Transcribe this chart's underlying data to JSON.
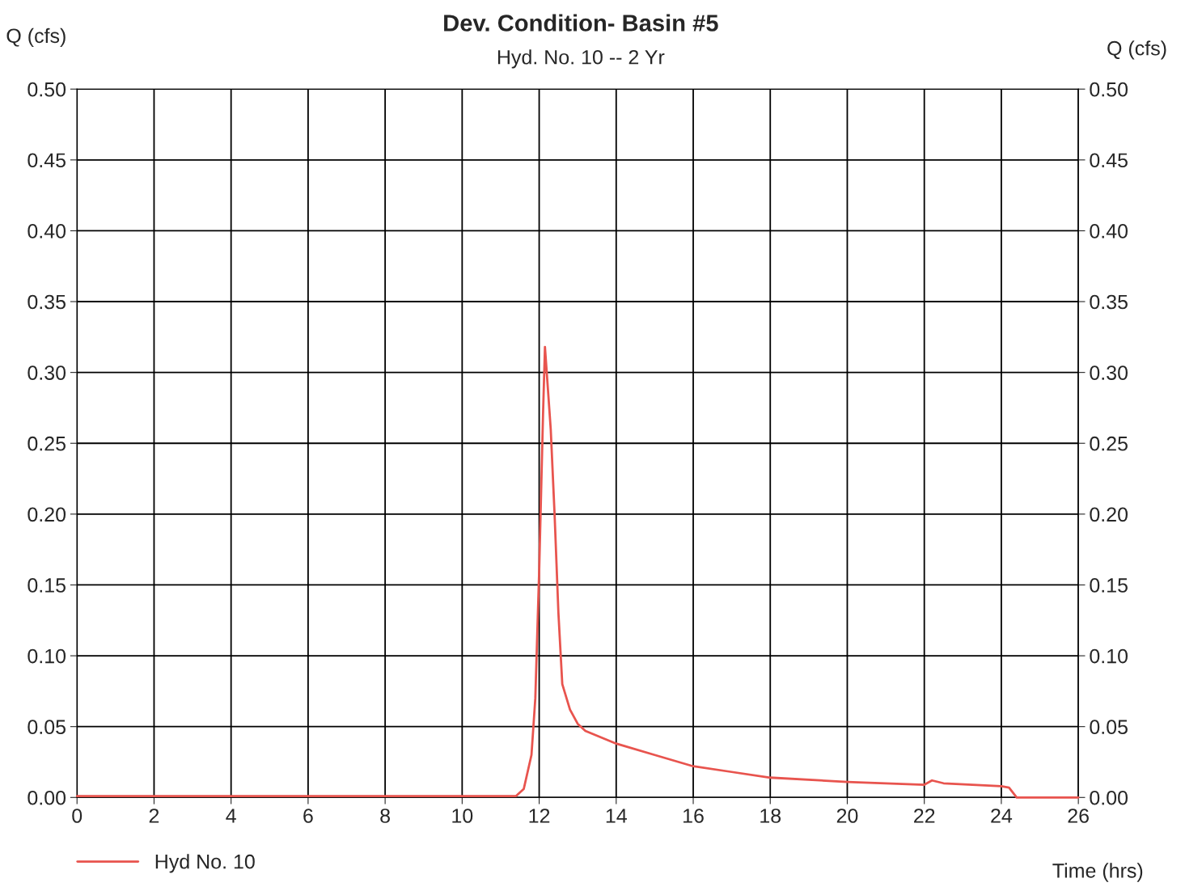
{
  "chart_data": {
    "type": "line",
    "title": "Dev. Condition- Basin #5",
    "subtitle": "Hyd. No. 10 -- 2 Yr",
    "xlabel": "Time (hrs)",
    "ylabel": "Q (cfs)",
    "y2label": "Q (cfs)",
    "x": [
      0,
      4,
      8,
      11.4,
      11.6,
      11.8,
      11.9,
      12.0,
      12.1,
      12.15,
      12.3,
      12.4,
      12.5,
      12.6,
      12.8,
      13.0,
      13.2,
      14,
      15,
      16,
      17,
      18,
      20,
      22,
      22.2,
      22.5,
      24,
      24.2,
      24.4,
      26
    ],
    "series": [
      {
        "name": "Hyd No. 10",
        "color": "#e8544e",
        "values": [
          0.001,
          0.001,
          0.001,
          0.001,
          0.006,
          0.03,
          0.07,
          0.16,
          0.27,
          0.318,
          0.26,
          0.2,
          0.13,
          0.08,
          0.062,
          0.052,
          0.047,
          0.038,
          0.03,
          0.022,
          0.018,
          0.014,
          0.011,
          0.009,
          0.012,
          0.01,
          0.008,
          0.007,
          0.0,
          0.0
        ]
      }
    ],
    "xlim": [
      0,
      26
    ],
    "xticks": [
      0,
      2,
      4,
      6,
      8,
      10,
      12,
      14,
      16,
      18,
      20,
      22,
      24,
      26
    ],
    "ylim": [
      0,
      0.5
    ],
    "yticks": [
      {
        "value": 0,
        "label": "0.00"
      },
      {
        "value": 0.05,
        "label": "0.05"
      },
      {
        "value": 0.1,
        "label": "0.10"
      },
      {
        "value": 0.15,
        "label": "0.15"
      },
      {
        "value": 0.2,
        "label": "0.20"
      },
      {
        "value": 0.25,
        "label": "0.25"
      },
      {
        "value": 0.3,
        "label": "0.30"
      },
      {
        "value": 0.35,
        "label": "0.35"
      },
      {
        "value": 0.4,
        "label": "0.40"
      },
      {
        "value": 0.45,
        "label": "0.45"
      },
      {
        "value": 0.5,
        "label": "0.50"
      }
    ],
    "y2lim": [
      0,
      0.5
    ],
    "y2ticks": [
      {
        "value": 0,
        "label": "0.00"
      },
      {
        "value": 0.05,
        "label": "0.05"
      },
      {
        "value": 0.1,
        "label": "0.10"
      },
      {
        "value": 0.15,
        "label": "0.15"
      },
      {
        "value": 0.2,
        "label": "0.20"
      },
      {
        "value": 0.25,
        "label": "0.25"
      },
      {
        "value": 0.3,
        "label": "0.30"
      },
      {
        "value": 0.35,
        "label": "0.35"
      },
      {
        "value": 0.4,
        "label": "0.40"
      },
      {
        "value": 0.45,
        "label": "0.45"
      },
      {
        "value": 0.5,
        "label": "0.50"
      }
    ],
    "grid": true,
    "legend": "bottom left",
    "marker": "none",
    "line_style": "solid"
  }
}
